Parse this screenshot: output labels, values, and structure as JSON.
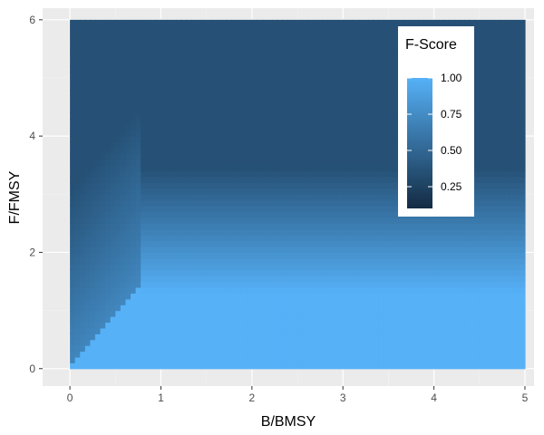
{
  "chart_data": {
    "type": "heatmap",
    "xlabel": "B/BMSY",
    "ylabel": "F/FMSY",
    "xlim": [
      -0.3,
      5.1
    ],
    "ylim": [
      -0.3,
      6.2
    ],
    "x_ticks": [
      0,
      1,
      2,
      3,
      4,
      5
    ],
    "y_ticks": [
      0,
      2,
      4,
      6
    ],
    "x_range": [
      0,
      5
    ],
    "y_range": [
      0,
      6
    ],
    "grid": true,
    "legend": {
      "title": "F-Score",
      "placement": "top-right",
      "breaks": [
        0.25,
        0.5,
        0.75,
        1.0
      ],
      "labels": [
        "0.25",
        "0.50",
        "0.75",
        "1.00"
      ],
      "limits": [
        0.1,
        1.0
      ],
      "colors": {
        "low": "#132b43",
        "high": "#56b1f7"
      }
    },
    "colors": {
      "panel_background": "#ebebeb",
      "grid_major": "#ffffff",
      "grid_minor": "#f2f2f2"
    }
  }
}
